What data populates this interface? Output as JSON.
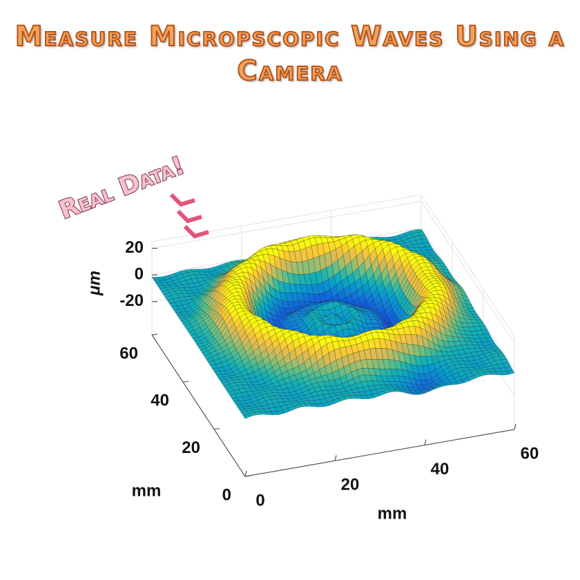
{
  "chart_data": {
    "type": "surface3d",
    "title": "Measure Micropscopic Waves Using a Camera",
    "annotation": "Real Data!",
    "xlabel": "mm",
    "ylabel": "mm",
    "zlabel": "μm",
    "xlim": [
      0,
      60
    ],
    "xticks": [
      0,
      20,
      40,
      60
    ],
    "ylim": [
      0,
      60
    ],
    "yticks": [
      0,
      20,
      40,
      60
    ],
    "zlim": [
      -45,
      25
    ],
    "zticks": [
      -20,
      0,
      20
    ],
    "grid": true
  }
}
